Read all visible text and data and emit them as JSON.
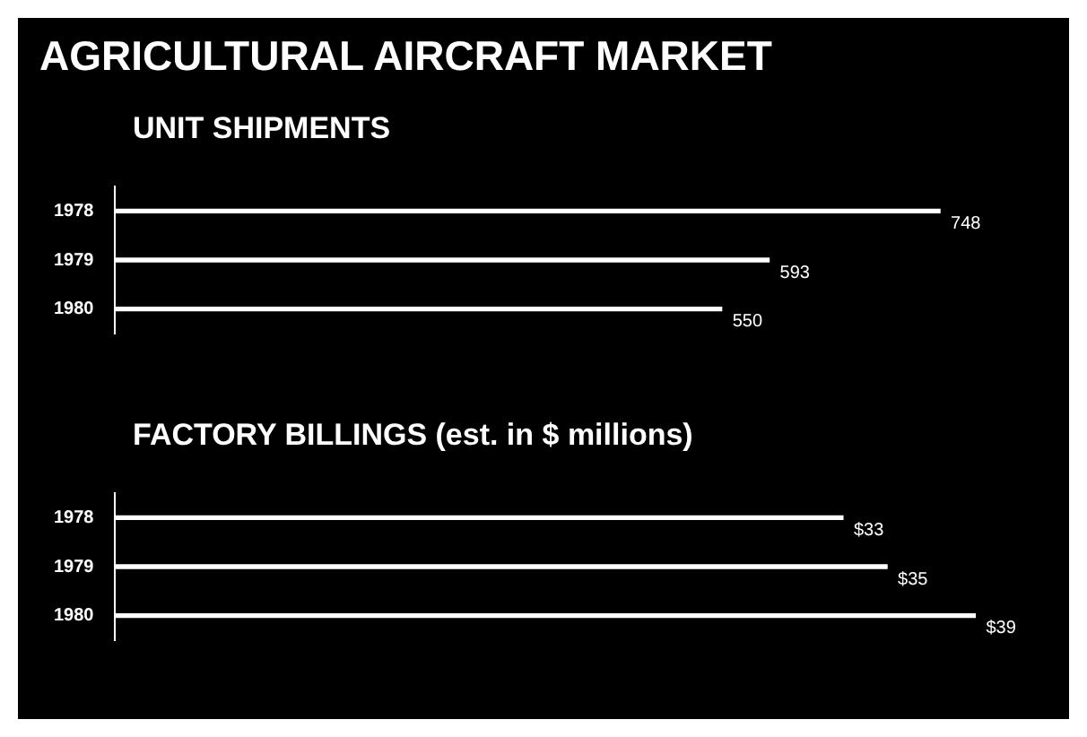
{
  "chart_data": [
    {
      "type": "bar",
      "orientation": "horizontal",
      "title": "AGRICULTURAL AIRCRAFT MARKET",
      "subtitle": "UNIT SHIPMENTS",
      "categories": [
        "1978",
        "1979",
        "1980"
      ],
      "values": [
        748,
        593,
        550
      ],
      "color": "#ffffff",
      "data_labels": true,
      "tick_labels": "y"
    },
    {
      "type": "bar",
      "orientation": "horizontal",
      "title": "FACTORY BILLINGS (est. in $ millions)",
      "categories": [
        "1978",
        "1979",
        "1980"
      ],
      "values": [
        33,
        35,
        39
      ],
      "value_labels": [
        "$33",
        "$35",
        "$39"
      ],
      "color": "#ffffff",
      "tick_labels": "y"
    }
  ]
}
